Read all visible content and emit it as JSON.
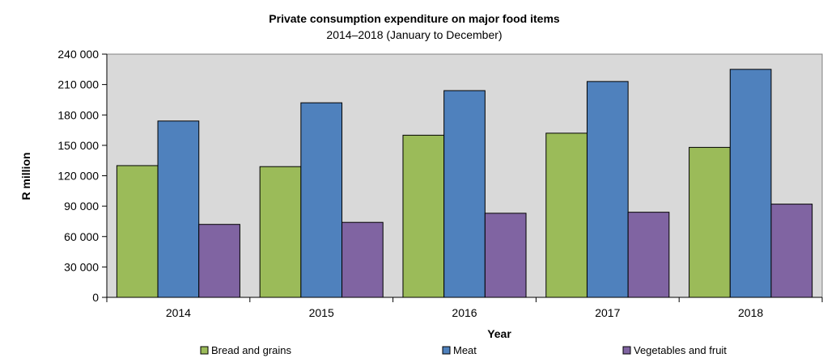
{
  "chart_data": {
    "type": "bar",
    "title": "Private consumption expenditure on major food items",
    "subtitle": "2014–2018 (January to December)",
    "xlabel": "Year",
    "ylabel": "R million",
    "categories": [
      "2014",
      "2015",
      "2016",
      "2017",
      "2018"
    ],
    "ylim": [
      0,
      240000
    ],
    "yticks": [
      {
        "value": 0,
        "label": "0"
      },
      {
        "value": 30000,
        "label": "30 000"
      },
      {
        "value": 60000,
        "label": "60 000"
      },
      {
        "value": 90000,
        "label": "90 000"
      },
      {
        "value": 120000,
        "label": "120 000"
      },
      {
        "value": 150000,
        "label": "150 000"
      },
      {
        "value": 180000,
        "label": "180 000"
      },
      {
        "value": 210000,
        "label": "210 000"
      },
      {
        "value": 240000,
        "label": "240 000"
      }
    ],
    "series": [
      {
        "name": "Bread and grains",
        "color": "#9BBB59",
        "values": [
          130000,
          129000,
          160000,
          162000,
          148000
        ]
      },
      {
        "name": "Meat",
        "color": "#4F81BD",
        "values": [
          174000,
          192000,
          204000,
          213000,
          225000
        ]
      },
      {
        "name": "Vegetables and fruit",
        "color": "#8064A2",
        "values": [
          72000,
          74000,
          83000,
          84000,
          92000
        ]
      }
    ],
    "grid": false,
    "plot_background": "#D9D9D9",
    "legend": "bottom"
  }
}
